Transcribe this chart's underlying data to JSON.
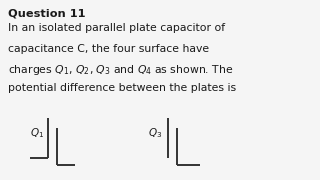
{
  "title": "Question 11",
  "body_lines": [
    "In an isolated parallel plate capacitor of",
    "capacitance C, the four surface have",
    "charges $Q_1$, $Q_2$, $Q_3$ and $Q_4$ as shown. The",
    "potential difference between the plates is"
  ],
  "background_color": "#f5f5f5",
  "text_color": "#1a1a1a",
  "title_fontsize": 8.2,
  "body_fontsize": 7.8,
  "plate1_label": "$Q_1$",
  "plate2_label": "$Q_3$",
  "plate_color": "#333333",
  "plate_linewidth": 1.4
}
